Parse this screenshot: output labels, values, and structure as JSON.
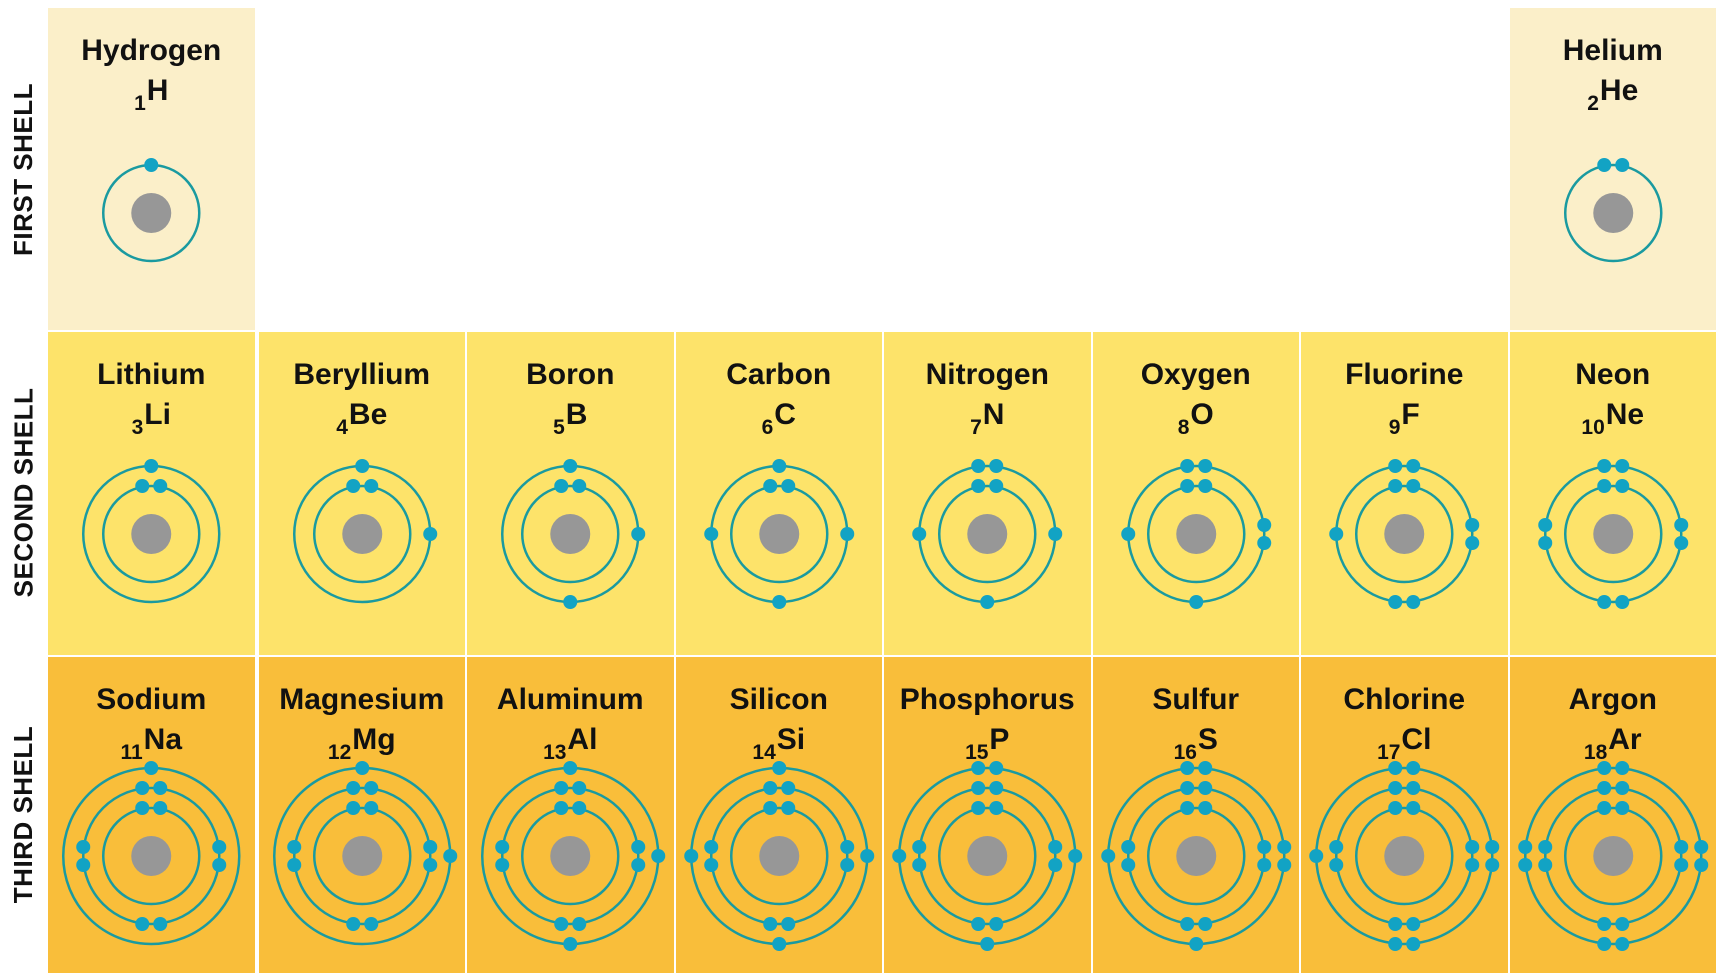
{
  "shells": [
    {
      "label": "FIRST SHELL"
    },
    {
      "label": "SECOND SHELL"
    },
    {
      "label": "THIRD SHELL"
    }
  ],
  "colors": {
    "first_shell_bg": "#fbefc9",
    "second_shell_bg": "#fde36a",
    "third_shell_bg": "#f9be3a",
    "orbit": "#1a9aa0",
    "electron": "#12a3c4",
    "nucleus": "#979797"
  },
  "elements": [
    {
      "name": "Hydrogen",
      "number": "1",
      "symbol": "H",
      "shell_row": 1,
      "column": 1,
      "electrons_by_shell": [
        1
      ]
    },
    {
      "name": "Helium",
      "number": "2",
      "symbol": "He",
      "shell_row": 1,
      "column": 8,
      "electrons_by_shell": [
        2
      ]
    },
    {
      "name": "Lithium",
      "number": "3",
      "symbol": "Li",
      "shell_row": 2,
      "column": 1,
      "electrons_by_shell": [
        2,
        1
      ]
    },
    {
      "name": "Beryllium",
      "number": "4",
      "symbol": "Be",
      "shell_row": 2,
      "column": 2,
      "electrons_by_shell": [
        2,
        2
      ]
    },
    {
      "name": "Boron",
      "number": "5",
      "symbol": "B",
      "shell_row": 2,
      "column": 3,
      "electrons_by_shell": [
        2,
        3
      ]
    },
    {
      "name": "Carbon",
      "number": "6",
      "symbol": "C",
      "shell_row": 2,
      "column": 4,
      "electrons_by_shell": [
        2,
        4
      ]
    },
    {
      "name": "Nitrogen",
      "number": "7",
      "symbol": "N",
      "shell_row": 2,
      "column": 5,
      "electrons_by_shell": [
        2,
        5
      ]
    },
    {
      "name": "Oxygen",
      "number": "8",
      "symbol": "O",
      "shell_row": 2,
      "column": 6,
      "electrons_by_shell": [
        2,
        6
      ]
    },
    {
      "name": "Fluorine",
      "number": "9",
      "symbol": "F",
      "shell_row": 2,
      "column": 7,
      "electrons_by_shell": [
        2,
        7
      ]
    },
    {
      "name": "Neon",
      "number": "10",
      "symbol": "Ne",
      "shell_row": 2,
      "column": 8,
      "electrons_by_shell": [
        2,
        8
      ]
    },
    {
      "name": "Sodium",
      "number": "11",
      "symbol": "Na",
      "shell_row": 3,
      "column": 1,
      "electrons_by_shell": [
        2,
        8,
        1
      ]
    },
    {
      "name": "Magnesium",
      "number": "12",
      "symbol": "Mg",
      "shell_row": 3,
      "column": 2,
      "electrons_by_shell": [
        2,
        8,
        2
      ]
    },
    {
      "name": "Aluminum",
      "number": "13",
      "symbol": "Al",
      "shell_row": 3,
      "column": 3,
      "electrons_by_shell": [
        2,
        8,
        3
      ]
    },
    {
      "name": "Silicon",
      "number": "14",
      "symbol": "Si",
      "shell_row": 3,
      "column": 4,
      "electrons_by_shell": [
        2,
        8,
        4
      ]
    },
    {
      "name": "Phosphorus",
      "number": "15",
      "symbol": "P",
      "shell_row": 3,
      "column": 5,
      "electrons_by_shell": [
        2,
        8,
        5
      ]
    },
    {
      "name": "Sulfur",
      "number": "16",
      "symbol": "S",
      "shell_row": 3,
      "column": 6,
      "electrons_by_shell": [
        2,
        8,
        6
      ]
    },
    {
      "name": "Chlorine",
      "number": "17",
      "symbol": "Cl",
      "shell_row": 3,
      "column": 7,
      "electrons_by_shell": [
        2,
        8,
        7
      ]
    },
    {
      "name": "Argon",
      "number": "18",
      "symbol": "Ar",
      "shell_row": 3,
      "column": 8,
      "electrons_by_shell": [
        2,
        8,
        8
      ]
    }
  ]
}
